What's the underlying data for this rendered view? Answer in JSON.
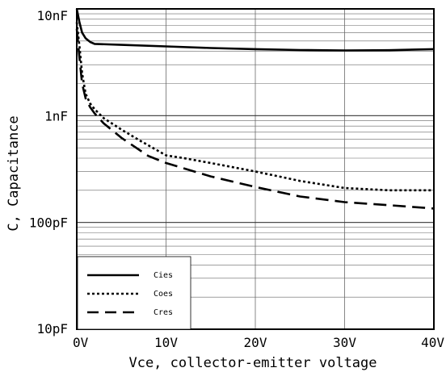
{
  "chart_data": {
    "type": "line",
    "xlabel": "Vce, collector-emitter voltage",
    "ylabel": "C, Capacitance",
    "x_scale": "linear",
    "y_scale": "log",
    "xlim": [
      0,
      40
    ],
    "ylim": [
      1e-11,
      1e-08
    ],
    "x_ticks": [
      {
        "value": 0,
        "label": "0V"
      },
      {
        "value": 10,
        "label": "10V"
      },
      {
        "value": 20,
        "label": "20V"
      },
      {
        "value": 30,
        "label": "30V"
      },
      {
        "value": 40,
        "label": "40V"
      }
    ],
    "y_ticks": [
      {
        "value": 1e-11,
        "label": "10pF"
      },
      {
        "value": 1e-10,
        "label": "100pF"
      },
      {
        "value": 1e-09,
        "label": "1nF"
      },
      {
        "value": 1e-08,
        "label": "10nF"
      }
    ],
    "grid": true,
    "legend_position": "bottom-left",
    "series": [
      {
        "name": "Cies",
        "style": "solid",
        "x": [
          0,
          0.3,
          0.6,
          1.0,
          1.5,
          2.0,
          5,
          10,
          15,
          20,
          25,
          30,
          35,
          40
        ],
        "y": [
          1e-08,
          7.5e-09,
          6e-09,
          5.3e-09,
          4.9e-09,
          4.7e-09,
          4.6e-09,
          4.45e-09,
          4.3e-09,
          4.2e-09,
          4.12e-09,
          4.08e-09,
          4.1e-09,
          4.2e-09
        ]
      },
      {
        "name": "Coes",
        "style": "dotted",
        "x": [
          0,
          0.3,
          0.6,
          1.0,
          1.5,
          2.0,
          3,
          5,
          7,
          10,
          12,
          15,
          20,
          25,
          30,
          35,
          40
        ],
        "y": [
          7.5e-09,
          4.5e-09,
          2.5e-09,
          1.6e-09,
          1.3e-09,
          1.15e-09,
          9.5e-10,
          7.4e-10,
          5.9e-10,
          4.25e-10,
          4e-10,
          3.6e-10,
          3e-10,
          2.45e-10,
          2.1e-10,
          2e-10,
          2e-10
        ]
      },
      {
        "name": "Cres",
        "style": "dashed",
        "x": [
          0,
          0.3,
          0.6,
          1.0,
          1.5,
          2.0,
          3,
          5,
          8,
          10,
          15,
          20,
          25,
          30,
          35,
          40
        ],
        "y": [
          6.5e-09,
          3.5e-09,
          2e-09,
          1.45e-09,
          1.2e-09,
          1.05e-09,
          8.5e-10,
          6.2e-10,
          4.2e-10,
          3.6e-10,
          2.7e-10,
          2.15e-10,
          1.75e-10,
          1.55e-10,
          1.45e-10,
          1.35e-10
        ]
      }
    ]
  },
  "legend": {
    "items": [
      {
        "label": "Cies",
        "dash": "solid"
      },
      {
        "label": "Coes",
        "dash": "dotted"
      },
      {
        "label": "Cres",
        "dash": "dashed"
      }
    ]
  }
}
